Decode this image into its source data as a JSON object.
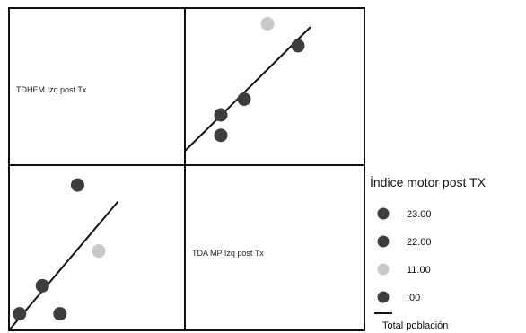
{
  "chart_data": {
    "type": "scatter",
    "subtype": "scatterplot-matrix",
    "variables": [
      "TDHEM Izq post Tx",
      "TDA MP Izq post Tx"
    ],
    "panels": [
      {
        "position": "top-right",
        "x_variable": "TDA MP Izq post Tx",
        "y_variable": "TDHEM Izq post Tx",
        "points": [
          {
            "x": 2.0,
            "y": 3.2,
            "group": "23.00"
          },
          {
            "x": 2.0,
            "y": 1.9,
            "group": "22.00"
          },
          {
            "x": 3.3,
            "y": 4.2,
            "group": "22.00"
          },
          {
            "x": 6.3,
            "y": 7.6,
            "group": ".00"
          },
          {
            "x": 4.6,
            "y": 9.0,
            "group": "11.00"
          }
        ],
        "fit_line": {
          "x1": 0.0,
          "y1": 0.9,
          "x2": 7.0,
          "y2": 8.8
        }
      },
      {
        "position": "bottom-left",
        "x_variable": "TDHEM Izq post Tx",
        "y_variable": "TDA MP Izq post Tx",
        "points": [
          {
            "x": 2.9,
            "y": 1.0,
            "group": "23.00"
          },
          {
            "x": 0.6,
            "y": 1.0,
            "group": "22.00"
          },
          {
            "x": 1.9,
            "y": 2.7,
            "group": "22.00"
          },
          {
            "x": 3.9,
            "y": 8.8,
            "group": ".00"
          },
          {
            "x": 5.1,
            "y": 4.8,
            "group": "11.00"
          }
        ],
        "fit_line": {
          "x1": 0.0,
          "y1": 0.0,
          "x2": 6.2,
          "y2": 7.8
        }
      }
    ],
    "legend": {
      "title": "Índice motor post TX",
      "placement": "right",
      "items": [
        {
          "label": "23.00",
          "color": "#3d3d3d",
          "marker": "circle"
        },
        {
          "label": "22.00",
          "color": "#3d3d3d",
          "marker": "circle"
        },
        {
          "label": "11.00",
          "color": "#c8c8c8",
          "marker": "circle"
        },
        {
          "label": ".00",
          "color": "#3d3d3d",
          "marker": "circle"
        },
        {
          "label": "Total población",
          "color": "#111111",
          "marker": "line"
        }
      ]
    },
    "grid": false
  }
}
